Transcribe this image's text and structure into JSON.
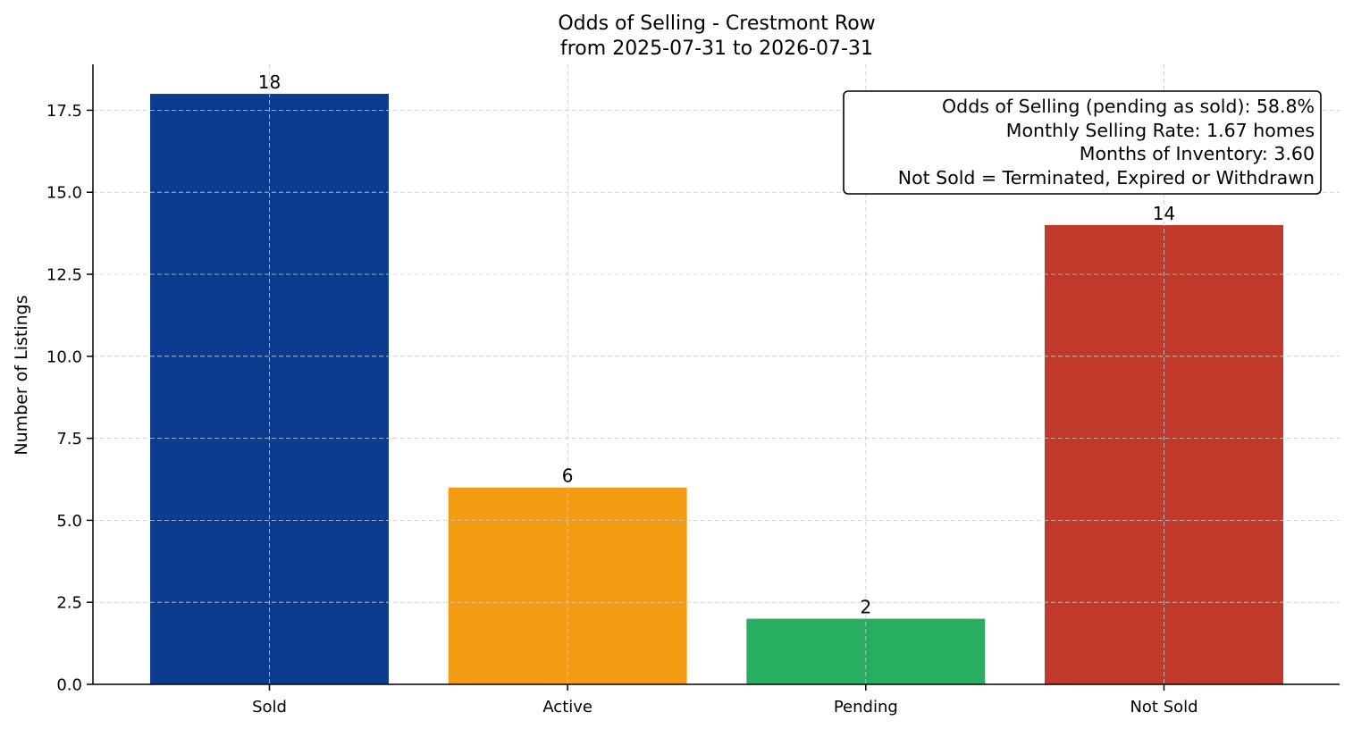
{
  "chart_data": {
    "type": "bar",
    "title_line1": "Odds of Selling - Crestmont Row",
    "title_line2": "from 2025-07-31 to 2026-07-31",
    "xlabel": "",
    "ylabel": "Number of Listings",
    "categories": [
      "Sold",
      "Active",
      "Pending",
      "Not Sold"
    ],
    "values": [
      18,
      6,
      2,
      14
    ],
    "value_labels": [
      "18",
      "6",
      "2",
      "14"
    ],
    "colors": [
      "#0b3c8f",
      "#f39c12",
      "#27ae60",
      "#c0392b"
    ],
    "ylim": [
      0,
      18.9
    ],
    "yticks": [
      0,
      2.5,
      5,
      7.5,
      10,
      12.5,
      15,
      17.5
    ],
    "ytick_labels": [
      "0.0",
      "2.5",
      "5.0",
      "7.5",
      "10.0",
      "12.5",
      "15.0",
      "17.5"
    ],
    "grid": true,
    "stats_box": {
      "placement": "top-right",
      "lines": [
        "Odds of Selling (pending as sold): 58.8%",
        "Monthly Selling Rate: 1.67 homes",
        "Months of Inventory: 3.60",
        "Not Sold = Terminated, Expired or Withdrawn"
      ]
    }
  }
}
